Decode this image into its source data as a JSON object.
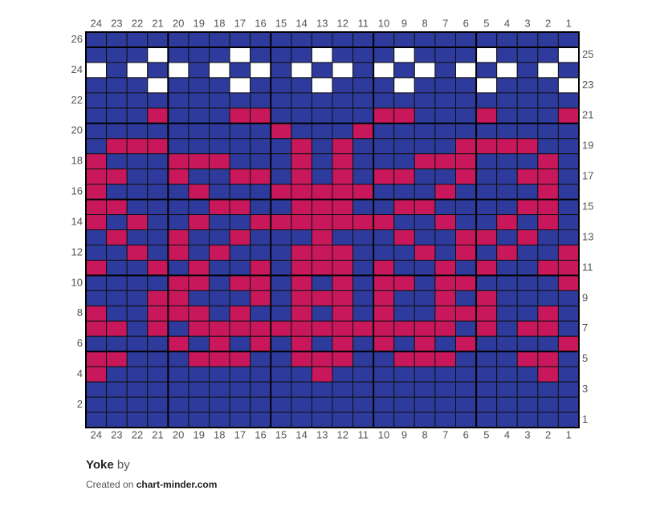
{
  "columns_top": [
    24,
    23,
    22,
    21,
    20,
    19,
    18,
    17,
    16,
    15,
    14,
    13,
    12,
    11,
    10,
    9,
    8,
    7,
    6,
    5,
    4,
    3,
    2,
    1
  ],
  "columns_bottom": [
    24,
    23,
    22,
    21,
    20,
    19,
    18,
    17,
    16,
    15,
    14,
    13,
    12,
    11,
    10,
    9,
    8,
    7,
    6,
    5,
    4,
    3,
    2,
    1
  ],
  "rows_left": [
    26,
    24,
    22,
    20,
    18,
    16,
    14,
    12,
    10,
    8,
    6,
    4,
    2
  ],
  "rows_right": [
    25,
    23,
    21,
    19,
    17,
    15,
    13,
    11,
    9,
    7,
    5,
    3,
    1
  ],
  "footer": {
    "title": "Yoke",
    "by": "by",
    "created": "Created on",
    "site": "chart-minder.com"
  }
}
